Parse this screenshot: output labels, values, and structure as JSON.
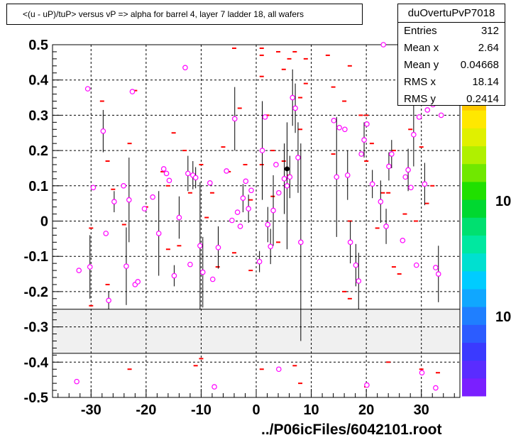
{
  "title": "<(u - uP)/tuP> versus   vP => alpha for barrel 4, layer 7 ladder 18, all wafers",
  "stats": {
    "name": "duOvertuPvP7018",
    "rows": [
      {
        "label": "Entries",
        "value": "312"
      },
      {
        "label": "Mean x",
        "value": "2.64"
      },
      {
        "label": "Mean y",
        "value": "0.04668"
      },
      {
        "label": "RMS x",
        "value": "18.14"
      },
      {
        "label": "RMS y",
        "value": "0.2414"
      }
    ]
  },
  "footer": "../P06icFiles/6042101.root",
  "palette_labels": [
    "10",
    "10"
  ],
  "colors": {
    "marker_stroke": "#ff00ff",
    "profile_line": "#000000",
    "red_marks": "#ff0000",
    "band_fill": "#f0f0f0"
  },
  "chart_data": {
    "type": "scatter",
    "xlim": [
      -37,
      37
    ],
    "ylim": [
      -0.5,
      0.5
    ],
    "x_ticks": [
      -30,
      -20,
      -10,
      0,
      10,
      20,
      30
    ],
    "y_ticks": [
      -0.5,
      -0.4,
      -0.3,
      -0.2,
      -0.1,
      0,
      0.1,
      0.2,
      0.3,
      0.4,
      0.5
    ],
    "x_tick_labels": [
      "-30",
      "-20",
      "-10",
      "0",
      "10",
      "20",
      "30"
    ],
    "y_tick_labels": [
      "-0.5",
      "-0.4",
      "-0.3",
      "-0.2",
      "-0.1",
      "0",
      "0.1",
      "0.2",
      "0.3",
      "0.4",
      "0.5"
    ],
    "grid": true,
    "empty_band": [
      -0.375,
      -0.25
    ],
    "profile_points": [
      {
        "x": -32.2,
        "y": -0.14,
        "e": 0
      },
      {
        "x": -30.6,
        "y": 0.375,
        "e": 0
      },
      {
        "x": -30.2,
        "y": -0.13,
        "e": 0.09
      },
      {
        "x": -29.6,
        "y": 0.095,
        "e": 0
      },
      {
        "x": -27.8,
        "y": 0.255,
        "e": 0.06
      },
      {
        "x": -27.3,
        "y": -0.035,
        "e": 0
      },
      {
        "x": -26.8,
        "y": -0.225,
        "e": 0.025
      },
      {
        "x": -25.8,
        "y": 0.055,
        "e": 0.03
      },
      {
        "x": -24.1,
        "y": 0.1,
        "e": 0
      },
      {
        "x": -23.6,
        "y": -0.128,
        "e": 0.11
      },
      {
        "x": -23.1,
        "y": 0.06,
        "e": 0.12
      },
      {
        "x": -22.5,
        "y": 0.367,
        "e": 0
      },
      {
        "x": -22.0,
        "y": -0.18,
        "e": 0
      },
      {
        "x": -21.5,
        "y": -0.172,
        "e": 0
      },
      {
        "x": -20.3,
        "y": 0.035,
        "e": 0
      },
      {
        "x": -18.8,
        "y": 0.068,
        "e": 0
      },
      {
        "x": -17.7,
        "y": -0.035,
        "e": 0.12
      },
      {
        "x": -16.8,
        "y": 0.148,
        "e": 0
      },
      {
        "x": -16.3,
        "y": 0.135,
        "e": 0
      },
      {
        "x": -15.8,
        "y": 0.115,
        "e": 0
      },
      {
        "x": -14.9,
        "y": -0.155,
        "e": 0.03
      },
      {
        "x": -14.0,
        "y": 0.01,
        "e": 0.06
      },
      {
        "x": -12.9,
        "y": 0.435,
        "e": 0
      },
      {
        "x": -12.4,
        "y": 0.135,
        "e": 0.05
      },
      {
        "x": -12.0,
        "y": -0.123,
        "e": 0
      },
      {
        "x": -11.5,
        "y": 0.13,
        "e": 0.04
      },
      {
        "x": -11.0,
        "y": 0.123,
        "e": 0.03
      },
      {
        "x": -10.2,
        "y": -0.07,
        "e": 0.18
      },
      {
        "x": -9.7,
        "y": -0.145,
        "e": 0.1
      },
      {
        "x": -8.4,
        "y": 0.108,
        "e": 0
      },
      {
        "x": -7.9,
        "y": -0.165,
        "e": 0
      },
      {
        "x": -6.9,
        "y": -0.075,
        "e": 0.06
      },
      {
        "x": -5.4,
        "y": 0.142,
        "e": 0
      },
      {
        "x": -4.4,
        "y": 0.002,
        "e": 0
      },
      {
        "x": -3.9,
        "y": 0.29,
        "e": 0.09
      },
      {
        "x": -3.4,
        "y": 0.025,
        "e": 0
      },
      {
        "x": -2.9,
        "y": -0.015,
        "e": 0
      },
      {
        "x": -2.4,
        "y": 0.065,
        "e": 0.04
      },
      {
        "x": -1.9,
        "y": 0.113,
        "e": 0
      },
      {
        "x": -1.4,
        "y": 0.035,
        "e": 0.04
      },
      {
        "x": -0.9,
        "y": 0.087,
        "e": 0
      },
      {
        "x": 0.6,
        "y": -0.115,
        "e": 0.03
      },
      {
        "x": 1.1,
        "y": 0.2,
        "e": 0.14
      },
      {
        "x": 1.6,
        "y": 0.295,
        "e": 0
      },
      {
        "x": 2.1,
        "y": -0.01,
        "e": 0.05
      },
      {
        "x": 2.6,
        "y": -0.072,
        "e": 0.05
      },
      {
        "x": 3.1,
        "y": 0.03,
        "e": 0.1
      },
      {
        "x": 3.6,
        "y": 0.16,
        "e": 0
      },
      {
        "x": 4.1,
        "y": 0.08,
        "e": 0
      },
      {
        "x": 5.1,
        "y": 0.12,
        "e": 0.1
      },
      {
        "x": 5.6,
        "y": 0.1,
        "e": 0.18
      },
      {
        "x": 6.1,
        "y": 0.125,
        "e": 0.06
      },
      {
        "x": 6.6,
        "y": 0.35,
        "e": 0.08
      },
      {
        "x": 7.1,
        "y": 0.32,
        "e": 0.07
      },
      {
        "x": 7.6,
        "y": 0.18,
        "e": 0.1
      },
      {
        "x": 8.1,
        "y": -0.06,
        "e": 0.28
      },
      {
        "x": 14.1,
        "y": 0.285,
        "e": 0
      },
      {
        "x": 14.6,
        "y": 0.125,
        "e": 0.17
      },
      {
        "x": 15.1,
        "y": 0.265,
        "e": 0
      },
      {
        "x": 16.1,
        "y": 0.26,
        "e": 0
      },
      {
        "x": 16.6,
        "y": 0.13,
        "e": 0.07
      },
      {
        "x": 17.1,
        "y": -0.06,
        "e": 0.06
      },
      {
        "x": 18.1,
        "y": -0.125,
        "e": 0.06
      },
      {
        "x": 18.6,
        "y": -0.17,
        "e": 0.08
      },
      {
        "x": 19.1,
        "y": 0.19,
        "e": 0
      },
      {
        "x": 19.6,
        "y": 0.23,
        "e": 0.05
      },
      {
        "x": 20.1,
        "y": 0.275,
        "e": 0
      },
      {
        "x": 21.1,
        "y": 0.105,
        "e": 0.04
      },
      {
        "x": 22.6,
        "y": 0.055,
        "e": 0.06
      },
      {
        "x": 23.1,
        "y": 0.5,
        "e": 0
      },
      {
        "x": 23.6,
        "y": -0.015,
        "e": 0.05
      },
      {
        "x": 24.1,
        "y": 0.155,
        "e": 0.04
      },
      {
        "x": 24.6,
        "y": 0.19,
        "e": 0.04
      },
      {
        "x": 26.6,
        "y": -0.055,
        "e": 0
      },
      {
        "x": 27.1,
        "y": 0.125,
        "e": 0
      },
      {
        "x": 27.6,
        "y": 0.145,
        "e": 0.06
      },
      {
        "x": 28.1,
        "y": 0.095,
        "e": 0
      },
      {
        "x": 28.6,
        "y": 0.245,
        "e": 0.09
      },
      {
        "x": 29.1,
        "y": -0.125,
        "e": 0
      },
      {
        "x": 29.6,
        "y": 0.295,
        "e": 0
      },
      {
        "x": 30.6,
        "y": 0.105,
        "e": 0.06
      },
      {
        "x": 31.1,
        "y": 0.315,
        "e": 0
      },
      {
        "x": 32.1,
        "y": 0.33,
        "e": 0
      },
      {
        "x": 33.6,
        "y": 0.3,
        "e": 0
      },
      {
        "x": 33.1,
        "y": -0.15,
        "e": 0.08
      },
      {
        "x": 32.6,
        "y": -0.132,
        "e": 0
      },
      {
        "x": -32.6,
        "y": -0.455,
        "e": 0
      },
      {
        "x": -7.6,
        "y": -0.47,
        "e": 0
      },
      {
        "x": 4.1,
        "y": -0.42,
        "e": 0
      },
      {
        "x": 20.1,
        "y": -0.465,
        "e": 0
      },
      {
        "x": 30.1,
        "y": -0.43,
        "e": 0
      },
      {
        "x": 32.6,
        "y": -0.473,
        "e": 0
      }
    ],
    "highlight_points": [
      {
        "x": 5.6,
        "y": 0.148
      }
    ],
    "raw_marks": [
      [
        -30,
        -0.24
      ],
      [
        -30,
        -0.02
      ],
      [
        -28,
        0.34
      ],
      [
        -27,
        0.17
      ],
      [
        -27,
        -0.18
      ],
      [
        -26,
        0.09
      ],
      [
        -24,
        -0.01
      ],
      [
        -23,
        0.22
      ],
      [
        -23,
        -0.42
      ],
      [
        -22,
        0.37
      ],
      [
        -20,
        0.04
      ],
      [
        -17,
        0.14
      ],
      [
        -16,
        -0.08
      ],
      [
        -15,
        0.25
      ],
      [
        -14,
        -0.07
      ],
      [
        -13,
        0.2
      ],
      [
        -12,
        0.08
      ],
      [
        -11,
        -0.41
      ],
      [
        -10,
        -0.39
      ],
      [
        -9,
        0.01
      ],
      [
        -8,
        0.08
      ],
      [
        -7,
        -0.13
      ],
      [
        -6,
        0.21
      ],
      [
        -5,
        0.14
      ],
      [
        -4,
        0.49
      ],
      [
        -4,
        -0.09
      ],
      [
        -3,
        0.32
      ],
      [
        -2,
        0.16
      ],
      [
        -1,
        -0.14
      ],
      [
        -1,
        0.06
      ],
      [
        1,
        0.49
      ],
      [
        1,
        0.47
      ],
      [
        1,
        0.41
      ],
      [
        1,
        -0.42
      ],
      [
        1,
        0.16
      ],
      [
        2,
        0.3
      ],
      [
        3,
        0.07
      ],
      [
        3,
        0.2
      ],
      [
        4,
        0.48
      ],
      [
        4,
        -0.06
      ],
      [
        5,
        0.43
      ],
      [
        5,
        0.17
      ],
      [
        6,
        0.46
      ],
      [
        6,
        0.13
      ],
      [
        7,
        0.48
      ],
      [
        7,
        -0.41
      ],
      [
        8,
        0.35
      ],
      [
        8,
        0.26
      ],
      [
        8,
        -0.46
      ],
      [
        9,
        0.46
      ],
      [
        9,
        0.39
      ],
      [
        13,
        0.47
      ],
      [
        14,
        0.38
      ],
      [
        14,
        0.19
      ],
      [
        16,
        0.34
      ],
      [
        16,
        -0.2
      ],
      [
        17,
        0.44
      ],
      [
        17,
        0.0
      ],
      [
        17,
        -0.22
      ],
      [
        19,
        0.3
      ],
      [
        20,
        0.3
      ],
      [
        20,
        0.17
      ],
      [
        20,
        -0.47
      ],
      [
        21,
        0.22
      ],
      [
        22,
        -0.02
      ],
      [
        23,
        0.08
      ],
      [
        24,
        -0.4
      ],
      [
        24,
        0.08
      ],
      [
        25,
        0.2
      ],
      [
        25,
        -0.13
      ],
      [
        26,
        -0.15
      ],
      [
        27,
        0.02
      ],
      [
        28,
        0.35
      ],
      [
        28,
        0.26
      ],
      [
        29,
        0.0
      ],
      [
        30,
        0.21
      ],
      [
        30,
        -0.42
      ],
      [
        31,
        0.05
      ],
      [
        33,
        -0.43
      ],
      [
        32,
        0.1
      ],
      [
        -16,
        0.1
      ],
      [
        -10,
        0.16
      ]
    ]
  }
}
